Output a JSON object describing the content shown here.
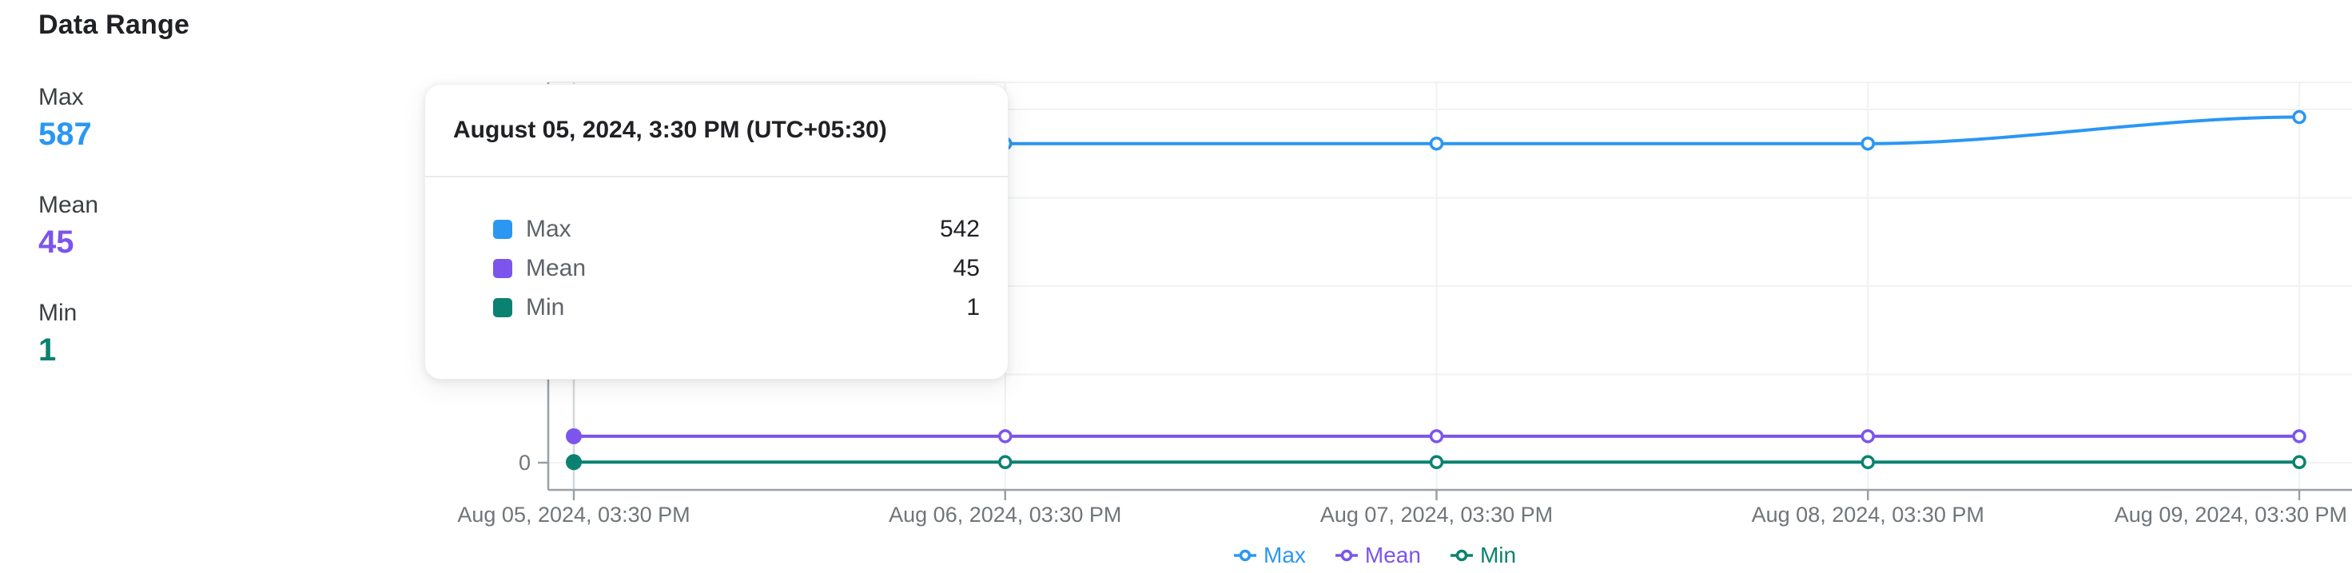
{
  "panel": {
    "title": "Data Range",
    "stats": [
      {
        "id": "max",
        "label": "Max",
        "value": "587",
        "color": "#2b97f3"
      },
      {
        "id": "mean",
        "label": "Mean",
        "value": "45",
        "color": "#7c55ec"
      },
      {
        "id": "min",
        "label": "Min",
        "value": "1",
        "color": "#0b8271"
      }
    ]
  },
  "tooltip": {
    "title": "August 05, 2024, 3:30 PM (UTC+05:30)",
    "rows": [
      {
        "label": "Max",
        "value": "542",
        "color": "#2b97f3"
      },
      {
        "label": "Mean",
        "value": "45",
        "color": "#7c55ec"
      },
      {
        "label": "Min",
        "value": "1",
        "color": "#0b8271"
      }
    ]
  },
  "axis": {
    "x_tick_labels": [
      "Aug 05, 2024, 03:30 PM",
      "Aug 06, 2024, 03:30 PM",
      "Aug 07, 2024, 03:30 PM",
      "Aug 08, 2024, 03:30 PM",
      "Aug 09, 2024, 03:30 PM"
    ],
    "y_zero_label": "0"
  },
  "legend": {
    "items": [
      {
        "label": "Max",
        "color": "#2b97f3"
      },
      {
        "label": "Mean",
        "color": "#7c55ec"
      },
      {
        "label": "Min",
        "color": "#0b8271"
      }
    ]
  },
  "chart_data": {
    "type": "line",
    "title": "Data Range",
    "x": [
      "Aug 05, 2024, 03:30 PM",
      "Aug 06, 2024, 03:30 PM",
      "Aug 07, 2024, 03:30 PM",
      "Aug 08, 2024, 03:30 PM",
      "Aug 09, 2024, 03:30 PM"
    ],
    "series": [
      {
        "name": "Max",
        "color": "#2b97f3",
        "values": [
          542,
          542,
          542,
          542,
          587
        ]
      },
      {
        "name": "Mean",
        "color": "#7c55ec",
        "values": [
          45,
          45,
          45,
          45,
          45
        ]
      },
      {
        "name": "Min",
        "color": "#0b8271",
        "values": [
          1,
          1,
          1,
          1,
          1
        ]
      }
    ],
    "hovered_point_index": 0,
    "ygrid_values": [
      0,
      150,
      300,
      450,
      600
    ],
    "ylim": [
      -46,
      646
    ],
    "grid": true,
    "legend_position": "bottom"
  },
  "colors": {
    "grid": "#f0f2f3",
    "axis": "#9aa0a6",
    "hover_line": "#d6d9dc",
    "tick": "#9aa0a6"
  }
}
